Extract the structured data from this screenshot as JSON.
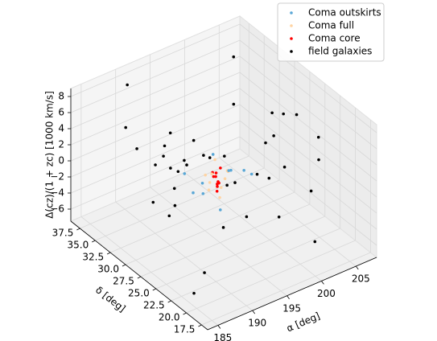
{
  "chart_data": {
    "type": "scatter3d",
    "xlabel": "α [deg]",
    "ylabel": "δ [deg]",
    "zlabel": "Δ(cz)/(1 + zc) [1000 km/s]",
    "xlim": [
      183.5,
      208
    ],
    "ylim": [
      16.5,
      39
    ],
    "zlim": [
      -7.5,
      9
    ],
    "xticks": [
      185,
      190,
      195,
      200,
      205
    ],
    "yticks": [
      17.5,
      {
        "value": 20,
        "label": "20.0"
      },
      22.5,
      {
        "value": 25,
        "label": "25.0"
      },
      27.5,
      {
        "value": 30,
        "label": "30.0"
      },
      32.5,
      {
        "value": 35,
        "label": "35.0"
      },
      37.5
    ],
    "zticks": [
      {
        "value": -6,
        "label": "−6"
      },
      {
        "value": -4,
        "label": "−4"
      },
      {
        "value": -2,
        "label": "−2"
      },
      0,
      2,
      4,
      6,
      8
    ],
    "grid": true,
    "legend": "upper right",
    "series": [
      {
        "name": "Coma outskirts",
        "color": "#5aa7d6",
        "x": [
          191.3,
          198.6,
          192.4,
          197.9,
          191.8,
          198.2,
          193.1,
          196.8,
          192.0,
          197.4
        ],
        "y": [
          26.1,
          29.8,
          30.4,
          25.6,
          28.3,
          27.2,
          25.3,
          30.7,
          27.0,
          28.8
        ],
        "z": [
          0.8,
          -1.2,
          0.3,
          1.1,
          -0.6,
          0.5,
          -1.4,
          0.9,
          1.3,
          -0.2
        ]
      },
      {
        "name": "Coma full",
        "color": "#ffd4a3",
        "x": [
          193.7,
          196.2,
          194.1,
          195.9,
          193.9,
          196.4,
          194.6,
          195.4,
          194.3,
          195.8
        ],
        "y": [
          27.4,
          28.7,
          28.9,
          27.2,
          28.1,
          27.9,
          27.1,
          28.8,
          28.4,
          27.6
        ],
        "z": [
          1.6,
          -1.8,
          0.4,
          1.2,
          -0.9,
          0.7,
          -1.5,
          1.9,
          -0.3,
          0.1
        ]
      },
      {
        "name": "Coma core",
        "color": "#ff0000",
        "x": [
          194.6,
          195.3,
          194.9,
          195.1,
          194.7,
          195.4,
          195.0,
          194.8,
          195.2,
          194.5
        ],
        "y": [
          27.7,
          28.3,
          28.1,
          27.8,
          28.4,
          27.9,
          28.0,
          27.6,
          28.2,
          28.0
        ],
        "z": [
          1.2,
          -1.1,
          0.4,
          -0.3,
          0.8,
          1.4,
          -1.4,
          0.1,
          -0.7,
          0.6
        ]
      },
      {
        "name": "field galaxies",
        "color": "#000000",
        "x": [
          186.2,
          199.4,
          204.1,
          191.7,
          195.3,
          188.9,
          202.6,
          197.8,
          185.4,
          193.2,
          206.3,
          190.1,
          200.9,
          187.5,
          196.6,
          203.8,
          192.4,
          198.2,
          189.3,
          205.1,
          194.7,
          186.8,
          201.5,
          191.2,
          197.1,
          204.7,
          188.2,
          195.9,
          199.8,
          193.9,
          185.9,
          202.1,
          190.6,
          196.3,
          206.8,
          187.1,
          194.2,
          200.3,
          192.8,
          198.9
        ],
        "y": [
          31.2,
          22.8,
          35.6,
          19.4,
          27.3,
          36.1,
          25.7,
          33.4,
          20.9,
          29.8,
          24.1,
          37.2,
          18.6,
          26.5,
          34.8,
          21.3,
          32.7,
          28.9,
          23.6,
          30.4,
          37.8,
          25.1,
          19.9,
          34.2,
          22.4,
          27.9,
          29.1,
          36.7,
          31.8,
          18.2,
          24.6,
          33.1,
          21.8,
          38.1,
          28.3,
          26.9,
          20.5,
          35.2,
          30.9,
          23.1
        ],
        "z": [
          5.2,
          -3.1,
          7.4,
          1.8,
          -5.6,
          3.9,
          6.8,
          -1.2,
          -6.3,
          4.5,
          0.7,
          8.1,
          -4.2,
          2.6,
          -2.8,
          6.1,
          -0.4,
          7.7,
          -6.8,
          3.2,
          -3.9,
          5.8,
          1.1,
          -5.1,
          7.2,
          -1.9,
          4.8,
          0.3,
          -4.7,
          6.5,
          2.2,
          -6.0,
          8.3,
          -2.3,
          3.6,
          -0.9,
          5.5,
          -3.5,
          1.5,
          7.0
        ]
      }
    ]
  }
}
